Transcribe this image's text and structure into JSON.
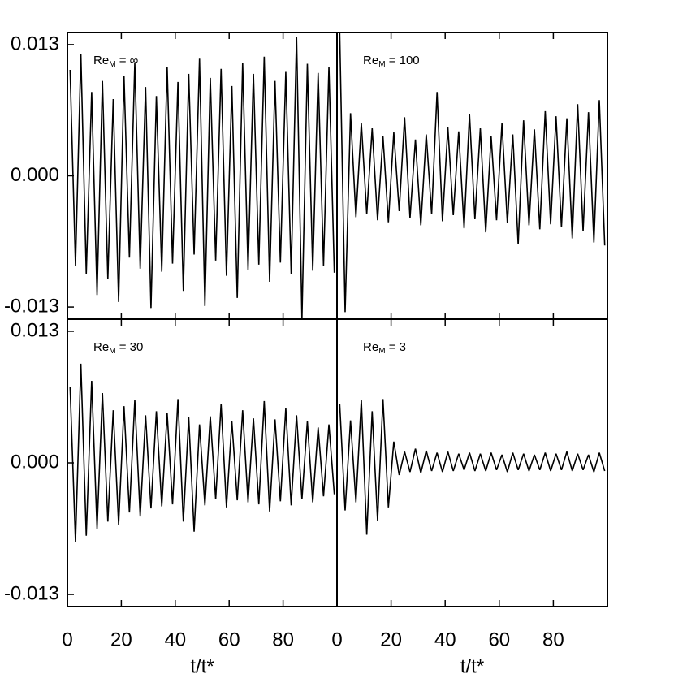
{
  "chart_data": [
    {
      "type": "line",
      "title_parts": [
        "Re",
        "M",
        " = ∞"
      ],
      "xlim": [
        0,
        100
      ],
      "ylim": [
        -0.0142,
        0.0142
      ],
      "xticks": [
        0,
        20,
        40,
        60,
        80
      ],
      "yticks": [
        {
          "value": -0.013,
          "label": "-0.013"
        },
        {
          "value": 0,
          "label": "0.000"
        },
        {
          "value": 0.013,
          "label": "0.013"
        }
      ],
      "x": [
        1,
        3,
        5,
        7,
        9,
        11,
        13,
        15,
        17,
        19,
        21,
        23,
        25,
        27,
        29,
        31,
        33,
        35,
        37,
        39,
        41,
        43,
        45,
        47,
        49,
        51,
        53,
        55,
        57,
        59,
        61,
        63,
        65,
        67,
        69,
        71,
        73,
        75,
        77,
        79,
        81,
        83,
        85,
        87,
        89,
        91,
        93,
        95,
        97,
        99
      ],
      "values": [
        0.0105,
        -0.0089,
        0.0121,
        -0.0097,
        0.0083,
        -0.0118,
        0.0094,
        -0.0102,
        0.0076,
        -0.0125,
        0.0099,
        -0.0081,
        0.0112,
        -0.0092,
        0.0088,
        -0.0131,
        0.0079,
        -0.0095,
        0.0108,
        -0.0087,
        0.0093,
        -0.0114,
        0.0101,
        -0.0078,
        0.0116,
        -0.0129,
        0.0097,
        -0.0084,
        0.0106,
        -0.0099,
        0.0089,
        -0.0121,
        0.0112,
        -0.0093,
        0.0101,
        -0.0088,
        0.0118,
        -0.0105,
        0.0094,
        -0.0086,
        0.0103,
        -0.0097,
        0.0138,
        -0.0142,
        0.0111,
        -0.0094,
        0.0102,
        -0.0089,
        0.0108,
        -0.0096
      ],
      "color": "#000000"
    },
    {
      "type": "line",
      "title_parts": [
        "Re",
        "M",
        " = 100"
      ],
      "xlim": [
        0,
        100
      ],
      "ylim": [
        -0.0142,
        0.0142
      ],
      "xticks": [
        0,
        20,
        40,
        60,
        80
      ],
      "x": [
        1,
        3,
        5,
        7,
        9,
        11,
        13,
        15,
        17,
        19,
        21,
        23,
        25,
        27,
        29,
        31,
        33,
        35,
        37,
        39,
        41,
        43,
        45,
        47,
        49,
        51,
        53,
        55,
        57,
        59,
        61,
        63,
        65,
        67,
        69,
        71,
        73,
        75,
        77,
        79,
        81,
        83,
        85,
        87,
        89,
        91,
        93,
        95,
        97,
        99
      ],
      "values": [
        0.0142,
        -0.0135,
        0.0062,
        -0.0041,
        0.0052,
        -0.0038,
        0.0047,
        -0.0044,
        0.0039,
        -0.0046,
        0.0043,
        -0.0035,
        0.0058,
        -0.0042,
        0.0036,
        -0.0049,
        0.0041,
        -0.0038,
        0.0083,
        -0.0045,
        0.0048,
        -0.0039,
        0.0044,
        -0.0052,
        0.0061,
        -0.0043,
        0.0047,
        -0.0056,
        0.0039,
        -0.0044,
        0.0052,
        -0.0047,
        0.0041,
        -0.0068,
        0.0055,
        -0.0049,
        0.0046,
        -0.0053,
        0.0064,
        -0.0048,
        0.0059,
        -0.0051,
        0.0057,
        -0.0062,
        0.0071,
        -0.0055,
        0.0063,
        -0.0066,
        0.0075,
        -0.0069
      ],
      "color": "#000000"
    },
    {
      "type": "line",
      "title_parts": [
        "Re",
        "M",
        " = 30"
      ],
      "xlim": [
        0,
        100
      ],
      "ylim": [
        -0.0142,
        0.0142
      ],
      "xticks": [
        0,
        20,
        40,
        60,
        80
      ],
      "xlabel": "t/t*",
      "yticks": [
        {
          "value": -0.013,
          "label": "-0.013"
        },
        {
          "value": 0,
          "label": "0.000"
        },
        {
          "value": 0.013,
          "label": "0.013"
        }
      ],
      "x": [
        1,
        3,
        5,
        7,
        9,
        11,
        13,
        15,
        17,
        19,
        21,
        23,
        25,
        27,
        29,
        31,
        33,
        35,
        37,
        39,
        41,
        43,
        45,
        47,
        49,
        51,
        53,
        55,
        57,
        59,
        61,
        63,
        65,
        67,
        69,
        71,
        73,
        75,
        77,
        79,
        81,
        83,
        85,
        87,
        89,
        91,
        93,
        95,
        97,
        99
      ],
      "values": [
        0.0075,
        -0.0078,
        0.0098,
        -0.0072,
        0.0081,
        -0.0065,
        0.0069,
        -0.0058,
        0.0052,
        -0.0061,
        0.0056,
        -0.0049,
        0.0062,
        -0.0053,
        0.0047,
        -0.0045,
        0.0051,
        -0.0043,
        0.0049,
        -0.0041,
        0.0063,
        -0.0058,
        0.0045,
        -0.0068,
        0.0038,
        -0.0042,
        0.0046,
        -0.0036,
        0.0058,
        -0.0044,
        0.0041,
        -0.0037,
        0.0052,
        -0.0039,
        0.0044,
        -0.0041,
        0.0061,
        -0.0048,
        0.0043,
        -0.0038,
        0.0054,
        -0.0042,
        0.0047,
        -0.0036,
        0.0041,
        -0.0039,
        0.0035,
        -0.0033,
        0.0038,
        -0.0031
      ],
      "color": "#000000"
    },
    {
      "type": "line",
      "title_parts": [
        "Re",
        "M",
        " = 3"
      ],
      "xlim": [
        0,
        100
      ],
      "ylim": [
        -0.0142,
        0.0142
      ],
      "xticks": [
        0,
        20,
        40,
        60,
        80
      ],
      "xlabel": "t/t*",
      "x": [
        1,
        3,
        5,
        7,
        9,
        11,
        13,
        15,
        17,
        19,
        21,
        23,
        25,
        27,
        29,
        31,
        33,
        35,
        37,
        39,
        41,
        43,
        45,
        47,
        49,
        51,
        53,
        55,
        57,
        59,
        61,
        63,
        65,
        67,
        69,
        71,
        73,
        75,
        77,
        79,
        81,
        83,
        85,
        87,
        89,
        91,
        93,
        95,
        97,
        99
      ],
      "values": [
        0.0058,
        -0.0047,
        0.0042,
        -0.0039,
        0.0062,
        -0.0071,
        0.0051,
        -0.0057,
        0.0063,
        -0.0044,
        0.0021,
        -0.0012,
        0.0011,
        -0.0009,
        0.0014,
        -0.001,
        0.0012,
        -0.0008,
        0.001,
        -0.0009,
        0.0011,
        -0.0008,
        0.0009,
        -0.0007,
        0.001,
        -0.0008,
        0.0009,
        -0.0008,
        0.001,
        -0.0007,
        0.0008,
        -0.0009,
        0.001,
        -0.0007,
        0.0009,
        -0.0008,
        0.0008,
        -0.0007,
        0.001,
        -0.0008,
        0.0009,
        -0.0007,
        0.0011,
        -0.0008,
        0.0009,
        -0.0007,
        0.0008,
        -0.0009,
        0.001,
        -0.0008
      ],
      "color": "#000000"
    }
  ]
}
